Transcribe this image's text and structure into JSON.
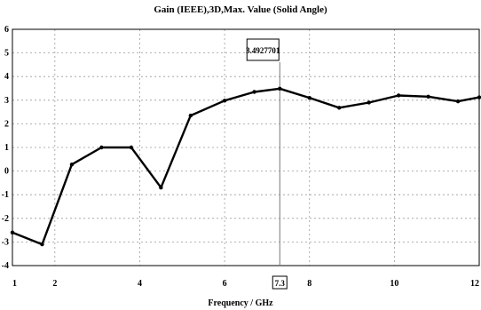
{
  "chart_data": {
    "type": "line",
    "title": "Gain (IEEE),3D,Max. Value (Solid Angle)",
    "xlabel": "Frequency / GHz",
    "ylabel": "",
    "xlim": [
      1,
      12
    ],
    "ylim": [
      -4,
      6
    ],
    "x_ticks": [
      "1",
      "2",
      "4",
      "6",
      "8",
      "10",
      "12"
    ],
    "y_ticks": [
      "6",
      "5",
      "4",
      "3",
      "2",
      "1",
      "0",
      "-1",
      "-2",
      "-3",
      "-4"
    ],
    "grid": true,
    "series": [
      {
        "x": [
          1,
          1.7,
          2.4,
          3.1,
          3.8,
          4.5,
          5.2,
          6,
          6.7,
          7.3,
          8,
          8.7,
          9.4,
          10.1,
          10.8,
          11.5,
          12
        ],
        "values": [
          -2.6,
          -3.1,
          0.28,
          1.0,
          1.0,
          -0.7,
          2.35,
          2.98,
          3.35,
          3.49,
          3.1,
          2.68,
          2.9,
          3.2,
          3.15,
          2.95,
          3.12
        ]
      }
    ],
    "marker": {
      "x": 7.3,
      "x_label": "7.3",
      "value_label": "3.4927701"
    }
  }
}
